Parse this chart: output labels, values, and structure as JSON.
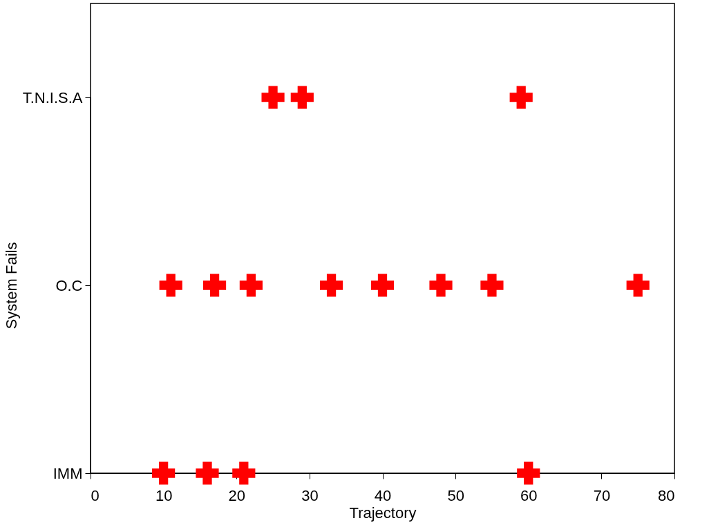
{
  "chart_data": {
    "type": "scatter",
    "orientation": "horizontal",
    "xlabel": "Trajectory",
    "ylabel": "System Fails",
    "categories": [
      "T.N.I.S.A",
      "O.C",
      "IMM"
    ],
    "series": [
      {
        "color": "#ff0000",
        "values": [
          25,
          11,
          10
        ]
      },
      {
        "color": "#ff0000",
        "values": [
          29,
          17,
          16
        ]
      },
      {
        "color": "#ff0000",
        "values": [
          59,
          22,
          21
        ]
      },
      {
        "color": "#ff0000",
        "values": [
          null,
          33,
          60
        ]
      },
      {
        "color": "#ff0000",
        "values": [
          null,
          40,
          null
        ]
      },
      {
        "color": "#ff0000",
        "values": [
          null,
          48,
          null
        ]
      },
      {
        "color": "#ff0000",
        "values": [
          null,
          55,
          null
        ]
      },
      {
        "color": "#ff0000",
        "values": [
          null,
          75,
          null
        ]
      }
    ],
    "xlim": [
      0,
      80
    ],
    "xticks": [
      0,
      10,
      20,
      30,
      40,
      50,
      60,
      70,
      80
    ],
    "marker": "cross",
    "grid": false
  }
}
